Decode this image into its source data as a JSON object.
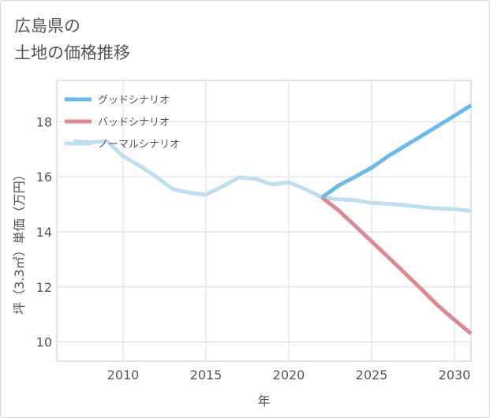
{
  "title": "広島県の\n土地の価格推移",
  "chart_data": {
    "type": "line",
    "title": "広島県の\n土地の価格推移",
    "xlabel": "年",
    "ylabel": "坪（3.3㎡）単価（万円）",
    "xlim": [
      2006,
      2031
    ],
    "ylim": [
      9.3,
      19.5
    ],
    "xticks": [
      2010,
      2015,
      2020,
      2025,
      2030
    ],
    "yticks": [
      10,
      12,
      14,
      16,
      18
    ],
    "grid": true,
    "legend_position": "top-left",
    "series": [
      {
        "name": "グッドシナリオ",
        "color": "#6cb9ea",
        "x": [
          2022,
          2023,
          2024,
          2025,
          2026,
          2027,
          2028,
          2029,
          2030,
          2031
        ],
        "y": [
          15.25,
          15.68,
          16.0,
          16.33,
          16.75,
          17.12,
          17.48,
          17.85,
          18.22,
          18.6
        ]
      },
      {
        "name": "バッドシナリオ",
        "color": "#db8a94",
        "x": [
          2022,
          2023,
          2024,
          2025,
          2026,
          2027,
          2028,
          2029,
          2030,
          2031
        ],
        "y": [
          15.25,
          14.78,
          14.22,
          13.65,
          13.08,
          12.5,
          11.92,
          11.32,
          10.8,
          10.3
        ]
      },
      {
        "name": "ノーマルシナリオ",
        "color": "#c0dfee",
        "x": [
          2007,
          2008,
          2009,
          2010,
          2011,
          2012,
          2013,
          2014,
          2015,
          2016,
          2017,
          2018,
          2019,
          2020,
          2021,
          2022,
          2023,
          2024,
          2025,
          2026,
          2027,
          2028,
          2029,
          2030,
          2031
        ],
        "y": [
          17.3,
          17.25,
          17.3,
          16.75,
          16.4,
          16.0,
          15.55,
          15.42,
          15.35,
          15.65,
          15.98,
          15.92,
          15.72,
          15.8,
          15.55,
          15.25,
          15.18,
          15.15,
          15.05,
          15.02,
          14.97,
          14.9,
          14.85,
          14.82,
          14.76
        ]
      }
    ]
  }
}
